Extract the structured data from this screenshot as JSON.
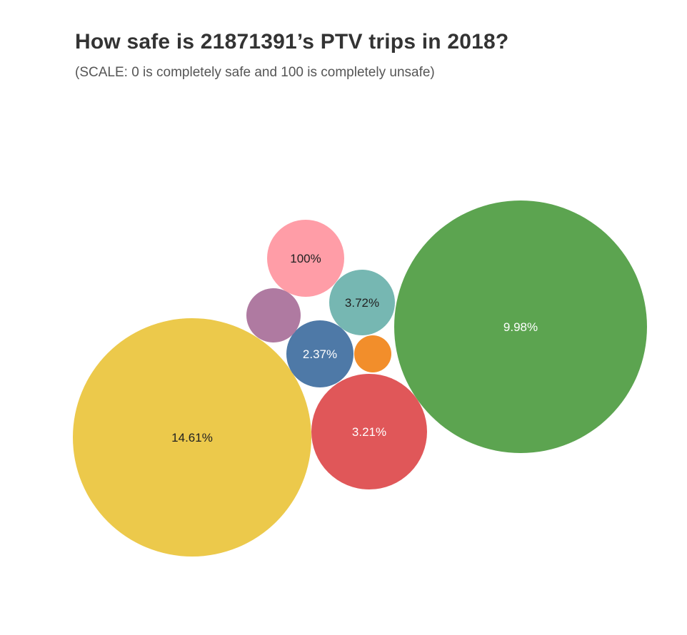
{
  "title": "How safe is 21871391’s PTV trips in 2018?",
  "subtitle": "(SCALE: 0 is completely safe and 100 is completely unsafe)",
  "chart_data": {
    "type": "bubble",
    "title": "How safe is 21871391’s PTV trips in 2018?",
    "subtitle": "(SCALE: 0 is completely safe and 100 is completely unsafe)",
    "bubbles": [
      {
        "label": "14.61%",
        "value": 14.61,
        "color": "#ecc94b",
        "label_color": "#222222"
      },
      {
        "label": "9.98%",
        "value": 9.98,
        "color": "#5ca450",
        "label_color": "#ffffff"
      },
      {
        "label": "3.21%",
        "value": 3.21,
        "color": "#e05759",
        "label_color": "#ffffff"
      },
      {
        "label": "100%",
        "value": 100,
        "color": "#ff9da7",
        "label_color": "#222222"
      },
      {
        "label": "3.72%",
        "value": 3.72,
        "color": "#76b7b2",
        "label_color": "#222222"
      },
      {
        "label": "2.37%",
        "value": 2.37,
        "color": "#4e79a7",
        "label_color": "#ffffff"
      },
      {
        "label": "",
        "value": null,
        "color": "#af7aa1",
        "label_color": "#ffffff"
      },
      {
        "label": "",
        "value": null,
        "color": "#f28e2b",
        "label_color": "#ffffff"
      }
    ]
  }
}
